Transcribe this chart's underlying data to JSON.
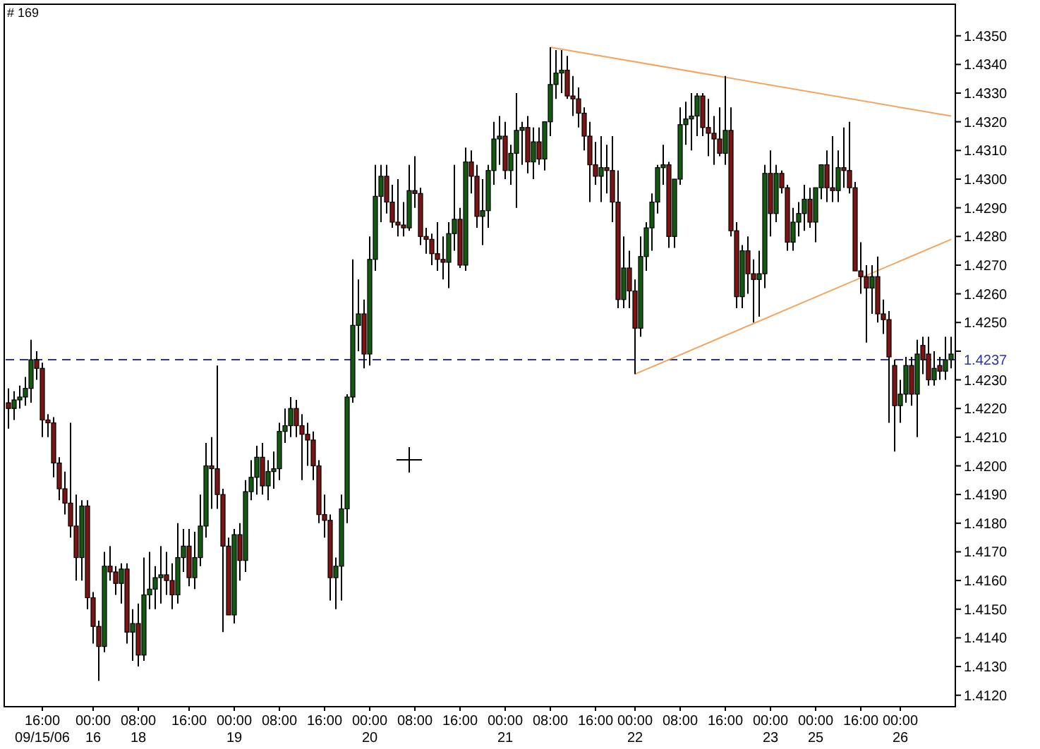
{
  "chart_data": {
    "type": "candlestick",
    "annotations": [
      "# 169"
    ],
    "ylim": [
      1.4116,
      1.4361
    ],
    "categories": [
      null,
      null,
      null,
      null,
      null,
      null,
      "16:00\n09/15/06",
      null,
      null,
      null,
      null,
      null,
      null,
      null,
      null,
      "00:00\n16",
      null,
      null,
      null,
      null,
      null,
      null,
      null,
      "08:00\n18",
      null,
      null,
      null,
      null,
      null,
      null,
      null,
      null,
      "16:00",
      null,
      null,
      null,
      null,
      null,
      null,
      null,
      "00:00\n19",
      null,
      null,
      null,
      null,
      null,
      null,
      null,
      "08:00",
      null,
      null,
      null,
      null,
      null,
      null,
      null,
      "16:00",
      null,
      null,
      null,
      null,
      null,
      null,
      null,
      "00:00\n20",
      null,
      null,
      null,
      null,
      null,
      null,
      null,
      "08:00",
      null,
      null,
      null,
      null,
      null,
      null,
      null,
      "16:00",
      null,
      null,
      null,
      null,
      null,
      null,
      null,
      "00:00\n21",
      null,
      null,
      null,
      null,
      null,
      null,
      null,
      "08:00",
      null,
      null,
      null,
      null,
      null,
      null,
      null,
      "16:00",
      null,
      null,
      null,
      null,
      null,
      null,
      "00:00\n22",
      null,
      null,
      null,
      null,
      null,
      null,
      null,
      "08:00",
      null,
      null,
      null,
      null,
      null,
      null,
      null,
      "16:00",
      null,
      null,
      null,
      null,
      null,
      null,
      null,
      "00:00\n23",
      null,
      null,
      null,
      null,
      null,
      null,
      null,
      "00:00\n25",
      null,
      null,
      null,
      null,
      null,
      null,
      null,
      "16:00",
      null,
      null,
      null,
      null,
      null,
      null,
      "00:00\n26",
      null,
      null,
      null,
      null,
      null,
      null,
      null,
      null,
      null
    ],
    "yticks": [
      {
        "value": 1.412,
        "label": "1.4120"
      },
      {
        "value": 1.413,
        "label": "1.4130"
      },
      {
        "value": 1.414,
        "label": "1.4140"
      },
      {
        "value": 1.415,
        "label": "1.4150"
      },
      {
        "value": 1.416,
        "label": "1.4160"
      },
      {
        "value": 1.417,
        "label": "1.4170"
      },
      {
        "value": 1.418,
        "label": "1.4180"
      },
      {
        "value": 1.419,
        "label": "1.4190"
      },
      {
        "value": 1.42,
        "label": "1.4200"
      },
      {
        "value": 1.421,
        "label": "1.4210"
      },
      {
        "value": 1.422,
        "label": "1.4220"
      },
      {
        "value": 1.423,
        "label": "1.4230"
      },
      {
        "value": 1.424,
        "label": null
      },
      {
        "value": 1.425,
        "label": "1.4250"
      },
      {
        "value": 1.426,
        "label": "1.4260"
      },
      {
        "value": 1.427,
        "label": "1.4270"
      },
      {
        "value": 1.428,
        "label": "1.4280"
      },
      {
        "value": 1.429,
        "label": "1.4290"
      },
      {
        "value": 1.43,
        "label": "1.4300"
      },
      {
        "value": 1.431,
        "label": "1.4310"
      },
      {
        "value": 1.432,
        "label": "1.4320"
      },
      {
        "value": 1.433,
        "label": "1.4330"
      },
      {
        "value": 1.434,
        "label": "1.4340"
      },
      {
        "value": 1.435,
        "label": "1.4350"
      }
    ],
    "ref_lines": [
      {
        "axis": "y",
        "value": 1.4237,
        "label": "1.4237",
        "color": "#3030a8",
        "line_style": "dashed"
      }
    ],
    "series": [
      {
        "type": "line",
        "color": "#f4a460",
        "values": [
          null,
          null,
          null,
          null,
          null,
          null,
          null,
          null,
          null,
          null,
          null,
          null,
          null,
          null,
          null,
          null,
          null,
          null,
          null,
          null,
          null,
          null,
          null,
          null,
          null,
          null,
          null,
          null,
          null,
          null,
          null,
          null,
          null,
          null,
          null,
          null,
          null,
          null,
          null,
          null,
          null,
          null,
          null,
          null,
          null,
          null,
          null,
          null,
          null,
          null,
          null,
          null,
          null,
          null,
          null,
          null,
          null,
          null,
          null,
          null,
          null,
          null,
          null,
          null,
          null,
          null,
          null,
          null,
          null,
          null,
          null,
          null,
          null,
          null,
          null,
          null,
          null,
          null,
          null,
          null,
          null,
          null,
          null,
          null,
          null,
          null,
          null,
          null,
          null,
          null,
          null,
          null,
          null,
          null,
          null,
          null,
          1.4346,
          null,
          null,
          null,
          null,
          null,
          null,
          null,
          null,
          null,
          null,
          null,
          null,
          null,
          null,
          null,
          null,
          null,
          null,
          null,
          null,
          null,
          null,
          null,
          null,
          null,
          null,
          null,
          null,
          null,
          null,
          null,
          null,
          null,
          null,
          null,
          null,
          null,
          null,
          null,
          null,
          null,
          null,
          null,
          null,
          null,
          null,
          null,
          null,
          null,
          null,
          null,
          null,
          null,
          null,
          null,
          null,
          null,
          null,
          null,
          null,
          null,
          null,
          null,
          null,
          null,
          null,
          null,
          null,
          null,
          null,
          1.4322
        ]
      },
      {
        "type": "line",
        "color": "#f4a460",
        "values": [
          null,
          null,
          null,
          null,
          null,
          null,
          null,
          null,
          null,
          null,
          null,
          null,
          null,
          null,
          null,
          null,
          null,
          null,
          null,
          null,
          null,
          null,
          null,
          null,
          null,
          null,
          null,
          null,
          null,
          null,
          null,
          null,
          null,
          null,
          null,
          null,
          null,
          null,
          null,
          null,
          null,
          null,
          null,
          null,
          null,
          null,
          null,
          null,
          null,
          null,
          null,
          null,
          null,
          null,
          null,
          null,
          null,
          null,
          null,
          null,
          null,
          null,
          null,
          null,
          null,
          null,
          null,
          null,
          null,
          null,
          null,
          null,
          null,
          null,
          null,
          null,
          null,
          null,
          null,
          null,
          null,
          null,
          null,
          null,
          null,
          null,
          null,
          null,
          null,
          null,
          null,
          null,
          null,
          null,
          null,
          null,
          null,
          null,
          null,
          null,
          null,
          null,
          null,
          null,
          null,
          null,
          null,
          null,
          null,
          null,
          null,
          1.4232,
          null,
          null,
          null,
          null,
          null,
          null,
          null,
          null,
          null,
          null,
          null,
          null,
          null,
          null,
          null,
          null,
          null,
          null,
          null,
          null,
          null,
          null,
          null,
          null,
          null,
          null,
          null,
          null,
          null,
          null,
          null,
          null,
          null,
          null,
          null,
          null,
          null,
          null,
          null,
          null,
          null,
          null,
          null,
          null,
          null,
          null,
          null,
          null,
          null,
          null,
          null,
          null,
          null,
          null,
          null,
          1.4279
        ]
      },
      {
        "ohlc": [
          [
            1.4222,
            1.4227,
            1.4213,
            1.422
          ],
          [
            1.422,
            1.4226,
            1.4216,
            1.4223
          ],
          [
            1.4223,
            1.4228,
            1.422,
            1.4224
          ],
          [
            1.4224,
            1.4231,
            1.4221,
            1.4227
          ],
          [
            1.4227,
            1.4244,
            1.4222,
            1.4237
          ],
          [
            1.4237,
            1.424,
            1.423,
            1.4234
          ],
          [
            1.4234,
            1.4236,
            1.421,
            1.4216
          ],
          [
            1.4216,
            1.4218,
            1.421,
            1.4215
          ],
          [
            1.4215,
            1.4217,
            1.4196,
            1.4201
          ],
          [
            1.4201,
            1.4203,
            1.4188,
            1.4192
          ],
          [
            1.4192,
            1.4198,
            1.4183,
            1.4187
          ],
          [
            1.4187,
            1.4215,
            1.4175,
            1.4179
          ],
          [
            1.4179,
            1.419,
            1.416,
            1.4168
          ],
          [
            1.4168,
            1.4188,
            1.416,
            1.4186
          ],
          [
            1.4186,
            1.4188,
            1.415,
            1.4154
          ],
          [
            1.4154,
            1.4156,
            1.4138,
            1.4144
          ],
          [
            1.4144,
            1.4146,
            1.4125,
            1.4137
          ],
          [
            1.4137,
            1.417,
            1.4135,
            1.4165
          ],
          [
            1.4165,
            1.4172,
            1.416,
            1.4163
          ],
          [
            1.4163,
            1.4165,
            1.4155,
            1.4159
          ],
          [
            1.4159,
            1.4166,
            1.4152,
            1.4164
          ],
          [
            1.4164,
            1.4166,
            1.4138,
            1.4142
          ],
          [
            1.4142,
            1.415,
            1.4132,
            1.4145
          ],
          [
            1.4145,
            1.4152,
            1.413,
            1.4134
          ],
          [
            1.4134,
            1.4168,
            1.4132,
            1.4155
          ],
          [
            1.4155,
            1.417,
            1.415,
            1.4157
          ],
          [
            1.4157,
            1.4165,
            1.415,
            1.4161
          ],
          [
            1.4161,
            1.4172,
            1.4152,
            1.4162
          ],
          [
            1.4162,
            1.417,
            1.4155,
            1.416
          ],
          [
            1.416,
            1.4166,
            1.415,
            1.4155
          ],
          [
            1.4155,
            1.418,
            1.4152,
            1.4168
          ],
          [
            1.4168,
            1.4178,
            1.4163,
            1.4172
          ],
          [
            1.4172,
            1.4178,
            1.4158,
            1.4161
          ],
          [
            1.4161,
            1.4177,
            1.4157,
            1.4168
          ],
          [
            1.4168,
            1.419,
            1.4165,
            1.4179
          ],
          [
            1.4179,
            1.4208,
            1.4175,
            1.42
          ],
          [
            1.42,
            1.421,
            1.4185,
            1.4199
          ],
          [
            1.4199,
            1.4235,
            1.4185,
            1.419
          ],
          [
            1.419,
            1.4192,
            1.4142,
            1.4172
          ],
          [
            1.4172,
            1.4175,
            1.4148,
            1.4148
          ],
          [
            1.4148,
            1.4178,
            1.4145,
            1.4176
          ],
          [
            1.4176,
            1.418,
            1.416,
            1.4167
          ],
          [
            1.4167,
            1.4195,
            1.4163,
            1.4191
          ],
          [
            1.4191,
            1.4202,
            1.4188,
            1.4196
          ],
          [
            1.4196,
            1.4207,
            1.419,
            1.4203
          ],
          [
            1.4203,
            1.4208,
            1.419,
            1.4193
          ],
          [
            1.4193,
            1.4202,
            1.4188,
            1.4198
          ],
          [
            1.4198,
            1.4205,
            1.4192,
            1.4199
          ],
          [
            1.4199,
            1.4215,
            1.4195,
            1.4212
          ],
          [
            1.4212,
            1.422,
            1.4208,
            1.4214
          ],
          [
            1.4214,
            1.4224,
            1.421,
            1.422
          ],
          [
            1.422,
            1.4223,
            1.421,
            1.4214
          ],
          [
            1.4214,
            1.4218,
            1.4195,
            1.4211
          ],
          [
            1.4211,
            1.4215,
            1.42,
            1.4209
          ],
          [
            1.4209,
            1.4212,
            1.4195,
            1.42
          ],
          [
            1.42,
            1.4202,
            1.418,
            1.4183
          ],
          [
            1.4183,
            1.419,
            1.4175,
            1.4181
          ],
          [
            1.4181,
            1.4183,
            1.4153,
            1.4161
          ],
          [
            1.4161,
            1.4168,
            1.415,
            1.4165
          ],
          [
            1.4165,
            1.419,
            1.4153,
            1.4185
          ],
          [
            1.4185,
            1.4225,
            1.418,
            1.4224
          ],
          [
            1.4224,
            1.4272,
            1.4222,
            1.4249
          ],
          [
            1.4249,
            1.4265,
            1.424,
            1.4253
          ],
          [
            1.4253,
            1.4258,
            1.4234,
            1.4239
          ],
          [
            1.4239,
            1.428,
            1.4235,
            1.4272
          ],
          [
            1.4272,
            1.4305,
            1.4268,
            1.4294
          ],
          [
            1.4294,
            1.4305,
            1.4285,
            1.4301
          ],
          [
            1.4301,
            1.4305,
            1.4288,
            1.4292
          ],
          [
            1.4292,
            1.4298,
            1.4283,
            1.4285
          ],
          [
            1.4285,
            1.43,
            1.428,
            1.4284
          ],
          [
            1.4284,
            1.4292,
            1.428,
            1.4283
          ],
          [
            1.4283,
            1.4305,
            1.4282,
            1.4296
          ],
          [
            1.4296,
            1.4308,
            1.429,
            1.4295
          ],
          [
            1.4295,
            1.4297,
            1.4277,
            1.428
          ],
          [
            1.428,
            1.4283,
            1.4274,
            1.4279
          ],
          [
            1.4279,
            1.4281,
            1.427,
            1.4274
          ],
          [
            1.4274,
            1.4285,
            1.4268,
            1.4272
          ],
          [
            1.4272,
            1.428,
            1.4265,
            1.4271
          ],
          [
            1.4271,
            1.4285,
            1.4262,
            1.4281
          ],
          [
            1.4281,
            1.4305,
            1.4275,
            1.4286
          ],
          [
            1.4286,
            1.429,
            1.4269,
            1.427
          ],
          [
            1.427,
            1.4311,
            1.4268,
            1.4306
          ],
          [
            1.4306,
            1.431,
            1.4295,
            1.4301
          ],
          [
            1.4301,
            1.4305,
            1.4283,
            1.4287
          ],
          [
            1.4287,
            1.43,
            1.4277,
            1.4289
          ],
          [
            1.4289,
            1.4305,
            1.4283,
            1.4303
          ],
          [
            1.4303,
            1.432,
            1.4298,
            1.4314
          ],
          [
            1.4314,
            1.4322,
            1.4305,
            1.4315
          ],
          [
            1.4315,
            1.432,
            1.43,
            1.4303
          ],
          [
            1.4303,
            1.4312,
            1.4298,
            1.4309
          ],
          [
            1.4309,
            1.433,
            1.429,
            1.4317
          ],
          [
            1.4317,
            1.432,
            1.4305,
            1.4318
          ],
          [
            1.4318,
            1.4322,
            1.4302,
            1.4306
          ],
          [
            1.4306,
            1.4318,
            1.43,
            1.4313
          ],
          [
            1.4313,
            1.4318,
            1.4305,
            1.4307
          ],
          [
            1.4307,
            1.432,
            1.4303,
            1.432
          ],
          [
            1.432,
            1.4346,
            1.4315,
            1.4333
          ],
          [
            1.4333,
            1.4345,
            1.4328,
            1.4337
          ],
          [
            1.4337,
            1.4345,
            1.433,
            1.4338
          ],
          [
            1.4338,
            1.4343,
            1.4328,
            1.4329
          ],
          [
            1.4329,
            1.4336,
            1.4322,
            1.4328
          ],
          [
            1.4328,
            1.4332,
            1.4318,
            1.4323
          ],
          [
            1.4323,
            1.4325,
            1.431,
            1.4315
          ],
          [
            1.4315,
            1.432,
            1.4292,
            1.4305
          ],
          [
            1.4305,
            1.4313,
            1.4298,
            1.4301
          ],
          [
            1.4301,
            1.4315,
            1.4292,
            1.4304
          ],
          [
            1.4304,
            1.4312,
            1.4295,
            1.4303
          ],
          [
            1.4303,
            1.4315,
            1.4285,
            1.4292
          ],
          [
            1.4292,
            1.4303,
            1.4255,
            1.4258
          ],
          [
            1.4258,
            1.428,
            1.4255,
            1.4269
          ],
          [
            1.4269,
            1.4275,
            1.4255,
            1.4261
          ],
          [
            1.4261,
            1.4265,
            1.4232,
            1.4248
          ],
          [
            1.4248,
            1.428,
            1.4245,
            1.4273
          ],
          [
            1.4273,
            1.4285,
            1.4268,
            1.4283
          ],
          [
            1.4283,
            1.4295,
            1.4275,
            1.4292
          ],
          [
            1.4292,
            1.4305,
            1.4288,
            1.4304
          ],
          [
            1.4304,
            1.4312,
            1.4298,
            1.4305
          ],
          [
            1.4305,
            1.4306,
            1.4276,
            1.428
          ],
          [
            1.428,
            1.43,
            1.4276,
            1.43
          ],
          [
            1.43,
            1.4325,
            1.4298,
            1.4319
          ],
          [
            1.4319,
            1.4327,
            1.4312,
            1.4321
          ],
          [
            1.4321,
            1.433,
            1.431,
            1.4322
          ],
          [
            1.4322,
            1.433,
            1.4315,
            1.4329
          ],
          [
            1.4329,
            1.433,
            1.4315,
            1.4318
          ],
          [
            1.4318,
            1.4328,
            1.4308,
            1.4316
          ],
          [
            1.4316,
            1.4322,
            1.4305,
            1.4314
          ],
          [
            1.4314,
            1.4325,
            1.4308,
            1.4309
          ],
          [
            1.4309,
            1.4336,
            1.4305,
            1.4317
          ],
          [
            1.4317,
            1.4325,
            1.428,
            1.4282
          ],
          [
            1.4282,
            1.4285,
            1.4255,
            1.4259
          ],
          [
            1.4259,
            1.4277,
            1.4255,
            1.4275
          ],
          [
            1.4275,
            1.428,
            1.426,
            1.4267
          ],
          [
            1.4267,
            1.4272,
            1.425,
            1.4265
          ],
          [
            1.4265,
            1.4275,
            1.4252,
            1.4267
          ],
          [
            1.4267,
            1.4305,
            1.4262,
            1.4302
          ],
          [
            1.4302,
            1.431,
            1.428,
            1.4288
          ],
          [
            1.4288,
            1.4305,
            1.4285,
            1.4302
          ],
          [
            1.4302,
            1.4303,
            1.4295,
            1.4297
          ],
          [
            1.4297,
            1.4298,
            1.4275,
            1.4278
          ],
          [
            1.4278,
            1.429,
            1.4275,
            1.4285
          ],
          [
            1.4285,
            1.4292,
            1.428,
            1.4288
          ],
          [
            1.4288,
            1.4298,
            1.4282,
            1.4293
          ],
          [
            1.4293,
            1.4297,
            1.4283,
            1.4285
          ],
          [
            1.4285,
            1.4297,
            1.4278,
            1.4297
          ],
          [
            1.4297,
            1.4305,
            1.4293,
            1.4305
          ],
          [
            1.4305,
            1.431,
            1.4292,
            1.4297
          ],
          [
            1.4297,
            1.4315,
            1.4292,
            1.4296
          ],
          [
            1.4296,
            1.431,
            1.4292,
            1.4304
          ],
          [
            1.4304,
            1.4318,
            1.4297,
            1.4303
          ],
          [
            1.4303,
            1.432,
            1.4295,
            1.4297
          ],
          [
            1.4297,
            1.4299,
            1.4268,
            1.4268
          ],
          [
            1.4268,
            1.4278,
            1.426,
            1.4266
          ],
          [
            1.4266,
            1.427,
            1.4243,
            1.4262
          ],
          [
            1.4262,
            1.427,
            1.4253,
            1.4266
          ],
          [
            1.4266,
            1.4273,
            1.425,
            1.4253
          ],
          [
            1.4253,
            1.4258,
            1.4246,
            1.4251
          ],
          [
            1.4251,
            1.4254,
            1.4215,
            1.4238
          ],
          [
            1.4235,
            1.4237,
            1.4205,
            1.4221
          ],
          [
            1.4221,
            1.423,
            1.4215,
            1.4225
          ],
          [
            1.4225,
            1.4238,
            1.4222,
            1.4235
          ],
          [
            1.4235,
            1.4238,
            1.4221,
            1.4225
          ],
          [
            1.4225,
            1.4244,
            1.421,
            1.4239
          ],
          [
            1.4242,
            1.4245,
            1.4232,
            1.4237
          ],
          [
            1.4239,
            1.4245,
            1.4228,
            1.423
          ],
          [
            1.423,
            1.424,
            1.4228,
            1.4234
          ],
          [
            1.4235,
            1.4238,
            1.423,
            1.4233
          ],
          [
            1.4233,
            1.4245,
            1.423,
            1.4237
          ],
          [
            1.4237,
            1.4245,
            1.4234,
            1.4239
          ]
        ],
        "colors": [
          "#7d1414",
          "#125a12",
          "#125a12",
          "#125a12",
          "#125a12",
          "#7d1414",
          "#7d1414",
          "#7d1414",
          "#7d1414",
          "#7d1414",
          "#7d1414",
          "#7d1414",
          "#7d1414",
          "#125a12",
          "#7d1414",
          "#7d1414",
          "#7d1414",
          "#125a12",
          "#7d1414",
          "#7d1414",
          "#125a12",
          "#7d1414",
          "#125a12",
          "#7d1414",
          "#125a12",
          "#125a12",
          "#125a12",
          "#125a12",
          "#7d1414",
          "#7d1414",
          "#125a12",
          "#125a12",
          "#7d1414",
          "#125a12",
          "#125a12",
          "#125a12",
          "#7d1414",
          "#7d1414",
          "#7d1414",
          "#7d1414",
          "#125a12",
          "#7d1414",
          "#125a12",
          "#125a12",
          "#125a12",
          "#7d1414",
          "#125a12",
          "#125a12",
          "#125a12",
          "#125a12",
          "#125a12",
          "#7d1414",
          "#7d1414",
          "#7d1414",
          "#7d1414",
          "#7d1414",
          "#7d1414",
          "#7d1414",
          "#125a12",
          "#125a12",
          "#125a12",
          "#125a12",
          "#125a12",
          "#7d1414",
          "#125a12",
          "#125a12",
          "#125a12",
          "#7d1414",
          "#7d1414",
          "#7d1414",
          "#7d1414",
          "#125a12",
          "#7d1414",
          "#7d1414",
          "#7d1414",
          "#7d1414",
          "#7d1414",
          "#7d1414",
          "#125a12",
          "#125a12",
          "#7d1414",
          "#125a12",
          "#7d1414",
          "#7d1414",
          "#125a12",
          "#125a12",
          "#125a12",
          "#125a12",
          "#7d1414",
          "#125a12",
          "#125a12",
          "#125a12",
          "#7d1414",
          "#125a12",
          "#7d1414",
          "#125a12",
          "#125a12",
          "#125a12",
          "#125a12",
          "#7d1414",
          "#7d1414",
          "#7d1414",
          "#7d1414",
          "#7d1414",
          "#7d1414",
          "#125a12",
          "#7d1414",
          "#7d1414",
          "#7d1414",
          "#125a12",
          "#7d1414",
          "#7d1414",
          "#125a12",
          "#125a12",
          "#125a12",
          "#125a12",
          "#125a12",
          "#7d1414",
          "#125a12",
          "#125a12",
          "#125a12",
          "#125a12",
          "#125a12",
          "#7d1414",
          "#7d1414",
          "#7d1414",
          "#7d1414",
          "#125a12",
          "#7d1414",
          "#7d1414",
          "#125a12",
          "#7d1414",
          "#7d1414",
          "#125a12",
          "#125a12",
          "#7d1414",
          "#125a12",
          "#7d1414",
          "#7d1414",
          "#125a12",
          "#125a12",
          "#125a12",
          "#7d1414",
          "#125a12",
          "#125a12",
          "#7d1414",
          "#7d1414",
          "#125a12",
          "#7d1414",
          "#7d1414",
          "#7d1414",
          "#7d1414",
          "#7d1414",
          "#125a12",
          "#7d1414",
          "#7d1414",
          "#7d1414",
          "#7d1414",
          "#125a12",
          "#125a12",
          "#7d1414",
          "#125a12",
          "#7d1414",
          "#7d1414",
          "#125a12",
          "#7d1414",
          "#125a12",
          "#125a12"
        ]
      }
    ]
  }
}
